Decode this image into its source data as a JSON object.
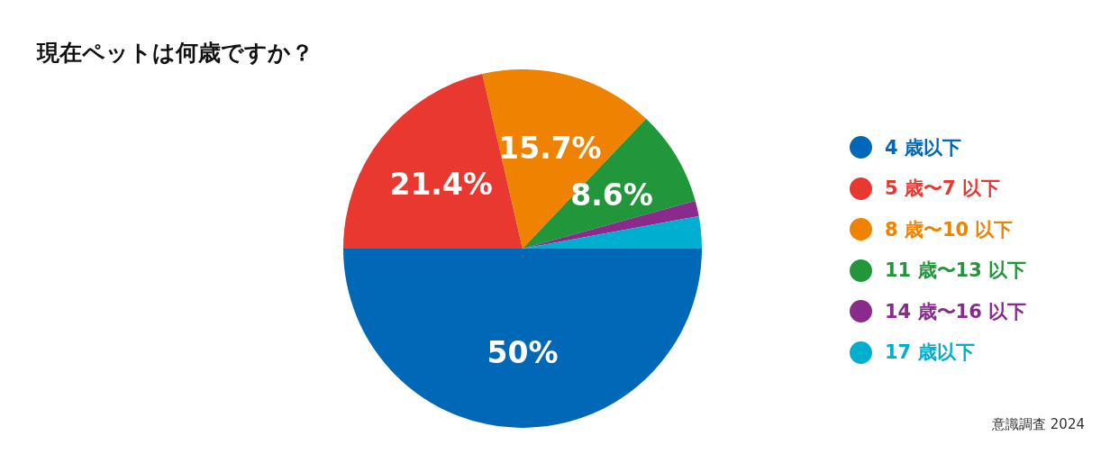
{
  "chart_data": {
    "type": "pie",
    "title": "現在ペットは何歳ですか？",
    "categories": [
      "4 歳以下",
      "5 歳〜7 以下",
      "8 歳〜10 以下",
      "11 歳〜13 以下",
      "14 歳〜16 以下",
      "17 歳以下"
    ],
    "values": [
      50,
      21.4,
      15.7,
      8.6,
      1.4,
      2.9
    ],
    "colors": [
      "#0068b7",
      "#e8382f",
      "#ef8200",
      "#22963b",
      "#8a2a8c",
      "#00aed0"
    ],
    "value_labels": [
      "50%",
      "21.4%",
      "15.7%",
      "8.6%",
      null,
      null
    ],
    "legend": "right",
    "annotations": [
      "意識調査 2024"
    ]
  }
}
